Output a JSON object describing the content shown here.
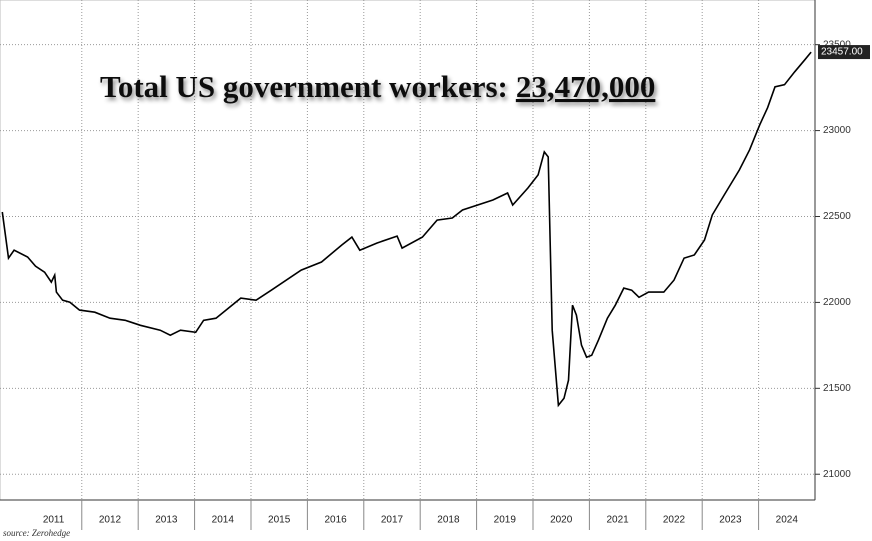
{
  "chart_data": {
    "type": "line",
    "title": "Total US government workers:",
    "headline_value": "23,470,000",
    "source": "source: Zerohedge",
    "x": [
      2010.59,
      2010.7,
      2010.8,
      2011.04,
      2011.18,
      2011.34,
      2011.46,
      2011.52,
      2011.55,
      2011.66,
      2011.79,
      2011.96,
      2012.23,
      2012.5,
      2012.77,
      2013.04,
      2013.39,
      2013.57,
      2013.75,
      2014.02,
      2014.16,
      2014.38,
      2014.82,
      2015.09,
      2015.36,
      2015.89,
      2016.25,
      2016.61,
      2016.79,
      2016.93,
      2017.23,
      2017.59,
      2017.68,
      2018.04,
      2018.3,
      2018.57,
      2018.75,
      2019.29,
      2019.55,
      2019.64,
      2019.91,
      2020.09,
      2020.2,
      2020.27,
      2020.34,
      2020.45,
      2020.55,
      2020.63,
      2020.7,
      2020.77,
      2020.86,
      2020.95,
      2021.04,
      2021.16,
      2021.32,
      2021.46,
      2021.61,
      2021.75,
      2021.88,
      2022.05,
      2022.32,
      2022.5,
      2022.68,
      2022.86,
      2023.04,
      2023.18,
      2023.39,
      2023.66,
      2023.84,
      2024.02,
      2024.16,
      2024.29,
      2024.46,
      2024.64,
      2024.82,
      2024.93
    ],
    "series": [
      {
        "color": "#000000",
        "values": [
          22526,
          22258,
          22304,
          22264,
          22211,
          22176,
          22118,
          22159,
          22060,
          22013,
          22001,
          21955,
          21943,
          21908,
          21896,
          21867,
          21838,
          21809,
          21838,
          21826,
          21896,
          21908,
          22025,
          22013,
          22071,
          22188,
          22235,
          22334,
          22380,
          22304,
          22345,
          22386,
          22316,
          22380,
          22479,
          22491,
          22538,
          22596,
          22637,
          22567,
          22666,
          22742,
          22876,
          22847,
          21838,
          21401,
          21442,
          21547,
          21984,
          21926,
          21751,
          21681,
          21692,
          21780,
          21908,
          21984,
          22083,
          22071,
          22030,
          22060,
          22060,
          22130,
          22258,
          22276,
          22363,
          22509,
          22625,
          22771,
          22888,
          23033,
          23133,
          23255,
          23267,
          23342,
          23412,
          23457
        ],
        "last_value_label": "23457.00"
      }
    ],
    "xlim": [
      2010.55,
      2025.0
    ],
    "xgrid": [
      2012,
      2013,
      2014,
      2015,
      2016,
      2017,
      2018,
      2019,
      2020,
      2021,
      2022,
      2023,
      2024
    ],
    "xticks": [
      {
        "value": 2011.5,
        "label": "2011"
      },
      {
        "value": 2012.5,
        "label": "2012"
      },
      {
        "value": 2013.5,
        "label": "2013"
      },
      {
        "value": 2014.5,
        "label": "2014"
      },
      {
        "value": 2015.5,
        "label": "2015"
      },
      {
        "value": 2016.5,
        "label": "2016"
      },
      {
        "value": 2017.5,
        "label": "2017"
      },
      {
        "value": 2018.5,
        "label": "2018"
      },
      {
        "value": 2019.5,
        "label": "2019"
      },
      {
        "value": 2020.5,
        "label": "2020"
      },
      {
        "value": 2021.5,
        "label": "2021"
      },
      {
        "value": 2022.5,
        "label": "2022"
      },
      {
        "value": 2023.5,
        "label": "2023"
      },
      {
        "value": 2024.5,
        "label": "2024"
      }
    ],
    "ylim": [
      20850,
      23760
    ],
    "yticks": [
      21000,
      21500,
      22000,
      22500,
      23000,
      23500
    ],
    "grid": true
  }
}
